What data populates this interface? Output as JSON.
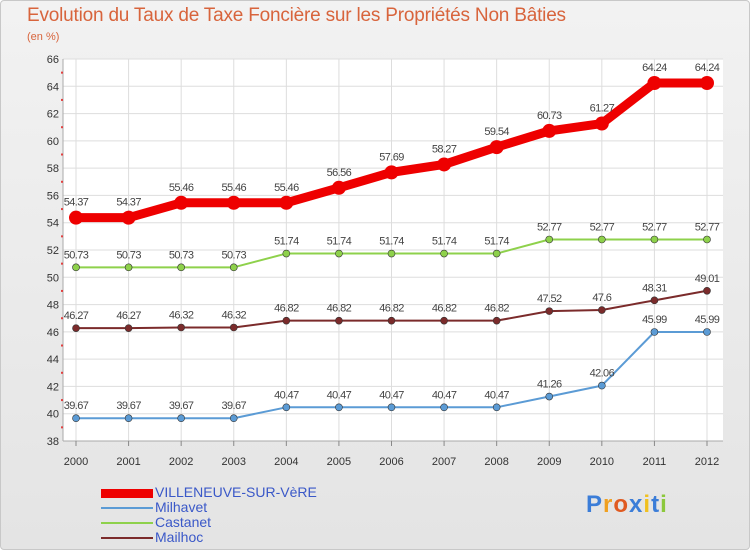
{
  "title": "Evolution du Taux de Taxe Foncière sur les Propriétés Non Bâties",
  "unit": "(en %)",
  "brand": {
    "letters": [
      "P",
      "r",
      "o",
      "x",
      "i",
      "t",
      "i"
    ],
    "colors": [
      "#3b7dd8",
      "#f0a020",
      "#e05a20",
      "#3b7dd8",
      "#f0c020",
      "#3b7dd8",
      "#8cc83c"
    ]
  },
  "chart_data": {
    "type": "line",
    "title": "Evolution du Taux de Taxe Foncière sur les Propriétés Non Bâties",
    "ylabel": "(en %)",
    "xlabel": "",
    "x": [
      "2000",
      "2001",
      "2002",
      "2003",
      "2004",
      "2005",
      "2006",
      "2007",
      "2008",
      "2009",
      "2010",
      "2011",
      "2012"
    ],
    "ylim": [
      38,
      66
    ],
    "yticks": [
      38,
      40,
      42,
      44,
      46,
      48,
      50,
      52,
      54,
      56,
      58,
      60,
      62,
      64,
      66
    ],
    "grid": true,
    "legend_position": "bottom-left",
    "series": [
      {
        "name": "VILLENEUVE-SUR-VèRE",
        "color": "#ee0000",
        "width": "thick",
        "values": [
          54.37,
          54.37,
          55.46,
          55.46,
          55.46,
          56.56,
          57.69,
          58.27,
          59.54,
          60.73,
          61.27,
          64.24,
          64.24
        ],
        "labels": [
          "54.37",
          "54.37",
          "55.46",
          "55.46",
          "55.46",
          "56.56",
          "57.69",
          "58.27",
          "59.54",
          "60.73",
          "61.27",
          "64.24",
          "64.24"
        ]
      },
      {
        "name": "Milhavet",
        "color": "#5b9bd5",
        "width": "thin",
        "values": [
          39.67,
          39.67,
          39.67,
          39.67,
          40.47,
          40.47,
          40.47,
          40.47,
          40.47,
          41.26,
          42.06,
          45.99,
          45.99
        ],
        "labels": [
          "39.67",
          "39.67",
          "39.67",
          "39.67",
          "40.47",
          "40.47",
          "40.47",
          "40.47",
          "40.47",
          "41.26",
          "42.06",
          "45.99",
          "45.99"
        ]
      },
      {
        "name": "Castanet",
        "color": "#8ed14b",
        "width": "thin",
        "values": [
          50.73,
          50.73,
          50.73,
          50.73,
          51.74,
          51.74,
          51.74,
          51.74,
          51.74,
          52.77,
          52.77,
          52.77,
          52.77
        ],
        "labels": [
          "50.73",
          "50.73",
          "50.73",
          "50.73",
          "51.74",
          "51.74",
          "51.74",
          "51.74",
          "51.74",
          "52.77",
          "52.77",
          "52.77",
          "52.77"
        ]
      },
      {
        "name": "Mailhoc",
        "color": "#7b2b2b",
        "width": "thin",
        "values": [
          46.27,
          46.27,
          46.32,
          46.32,
          46.82,
          46.82,
          46.82,
          46.82,
          46.82,
          47.52,
          47.6,
          48.31,
          49.01
        ],
        "labels": [
          "46.27",
          "46.27",
          "46.32",
          "46.32",
          "46.82",
          "46.82",
          "46.82",
          "46.82",
          "46.82",
          "47.52",
          "47.6",
          "48.31",
          "49.01"
        ]
      }
    ]
  }
}
